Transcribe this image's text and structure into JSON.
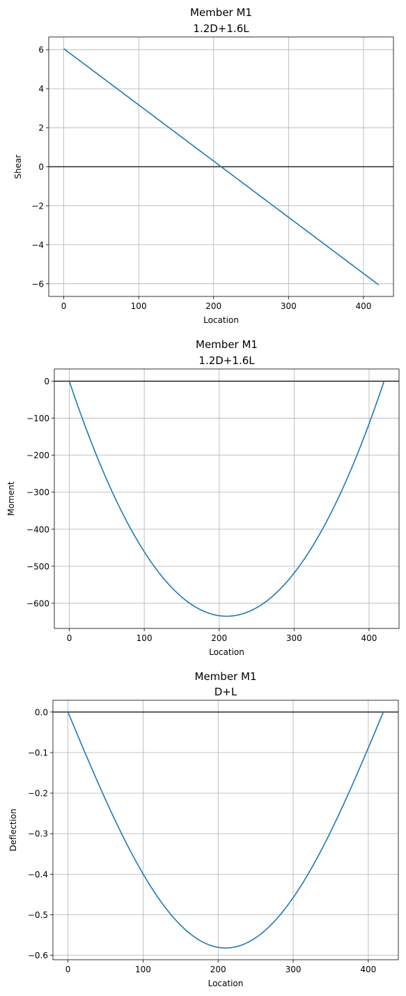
{
  "chart_data": [
    {
      "type": "line",
      "title": "Member M1",
      "subtitle": "1.2D+1.6L",
      "xlabel": "Location",
      "ylabel": "Shear",
      "xlim": [
        -20,
        440
      ],
      "ylim": [
        -6.65,
        6.65
      ],
      "xticks": [
        0,
        100,
        200,
        300,
        400
      ],
      "yticks": [
        6,
        4,
        2,
        0,
        -2,
        -4,
        -6
      ],
      "grid": true,
      "zero_line": true,
      "color": "#1f77b4",
      "shape": "linear",
      "x": [
        0,
        420
      ],
      "y": [
        6.05,
        -6.05
      ]
    },
    {
      "type": "line",
      "title": "Member M1",
      "subtitle": "1.2D+1.6L",
      "xlabel": "Location",
      "ylabel": "Moment",
      "xlim": [
        -20,
        440
      ],
      "ylim": [
        -668,
        33
      ],
      "xticks": [
        0,
        100,
        200,
        300,
        400
      ],
      "yticks": [
        0,
        -100,
        -200,
        -300,
        -400,
        -500,
        -600
      ],
      "grid": true,
      "zero_line": true,
      "color": "#1f77b4",
      "shape": "parabola",
      "x": [
        0,
        210,
        420
      ],
      "y": [
        0,
        -635,
        0
      ]
    },
    {
      "type": "line",
      "title": "Member M1",
      "subtitle": "D+L",
      "xlabel": "Location",
      "ylabel": "Deflection",
      "xlim": [
        -20,
        440
      ],
      "ylim": [
        -0.611,
        0.029
      ],
      "xticks": [
        0,
        100,
        200,
        300,
        400
      ],
      "yticks": [
        "0.0",
        "−0.1",
        "−0.2",
        "−0.3",
        "−0.4",
        "−0.5",
        "−0.6"
      ],
      "ytick_values": [
        0,
        -0.1,
        -0.2,
        -0.3,
        -0.4,
        -0.5,
        -0.6
      ],
      "grid": true,
      "zero_line": true,
      "color": "#1f77b4",
      "shape": "quartic",
      "x": [
        0,
        210,
        420
      ],
      "y": [
        0,
        -0.582,
        0
      ]
    }
  ]
}
